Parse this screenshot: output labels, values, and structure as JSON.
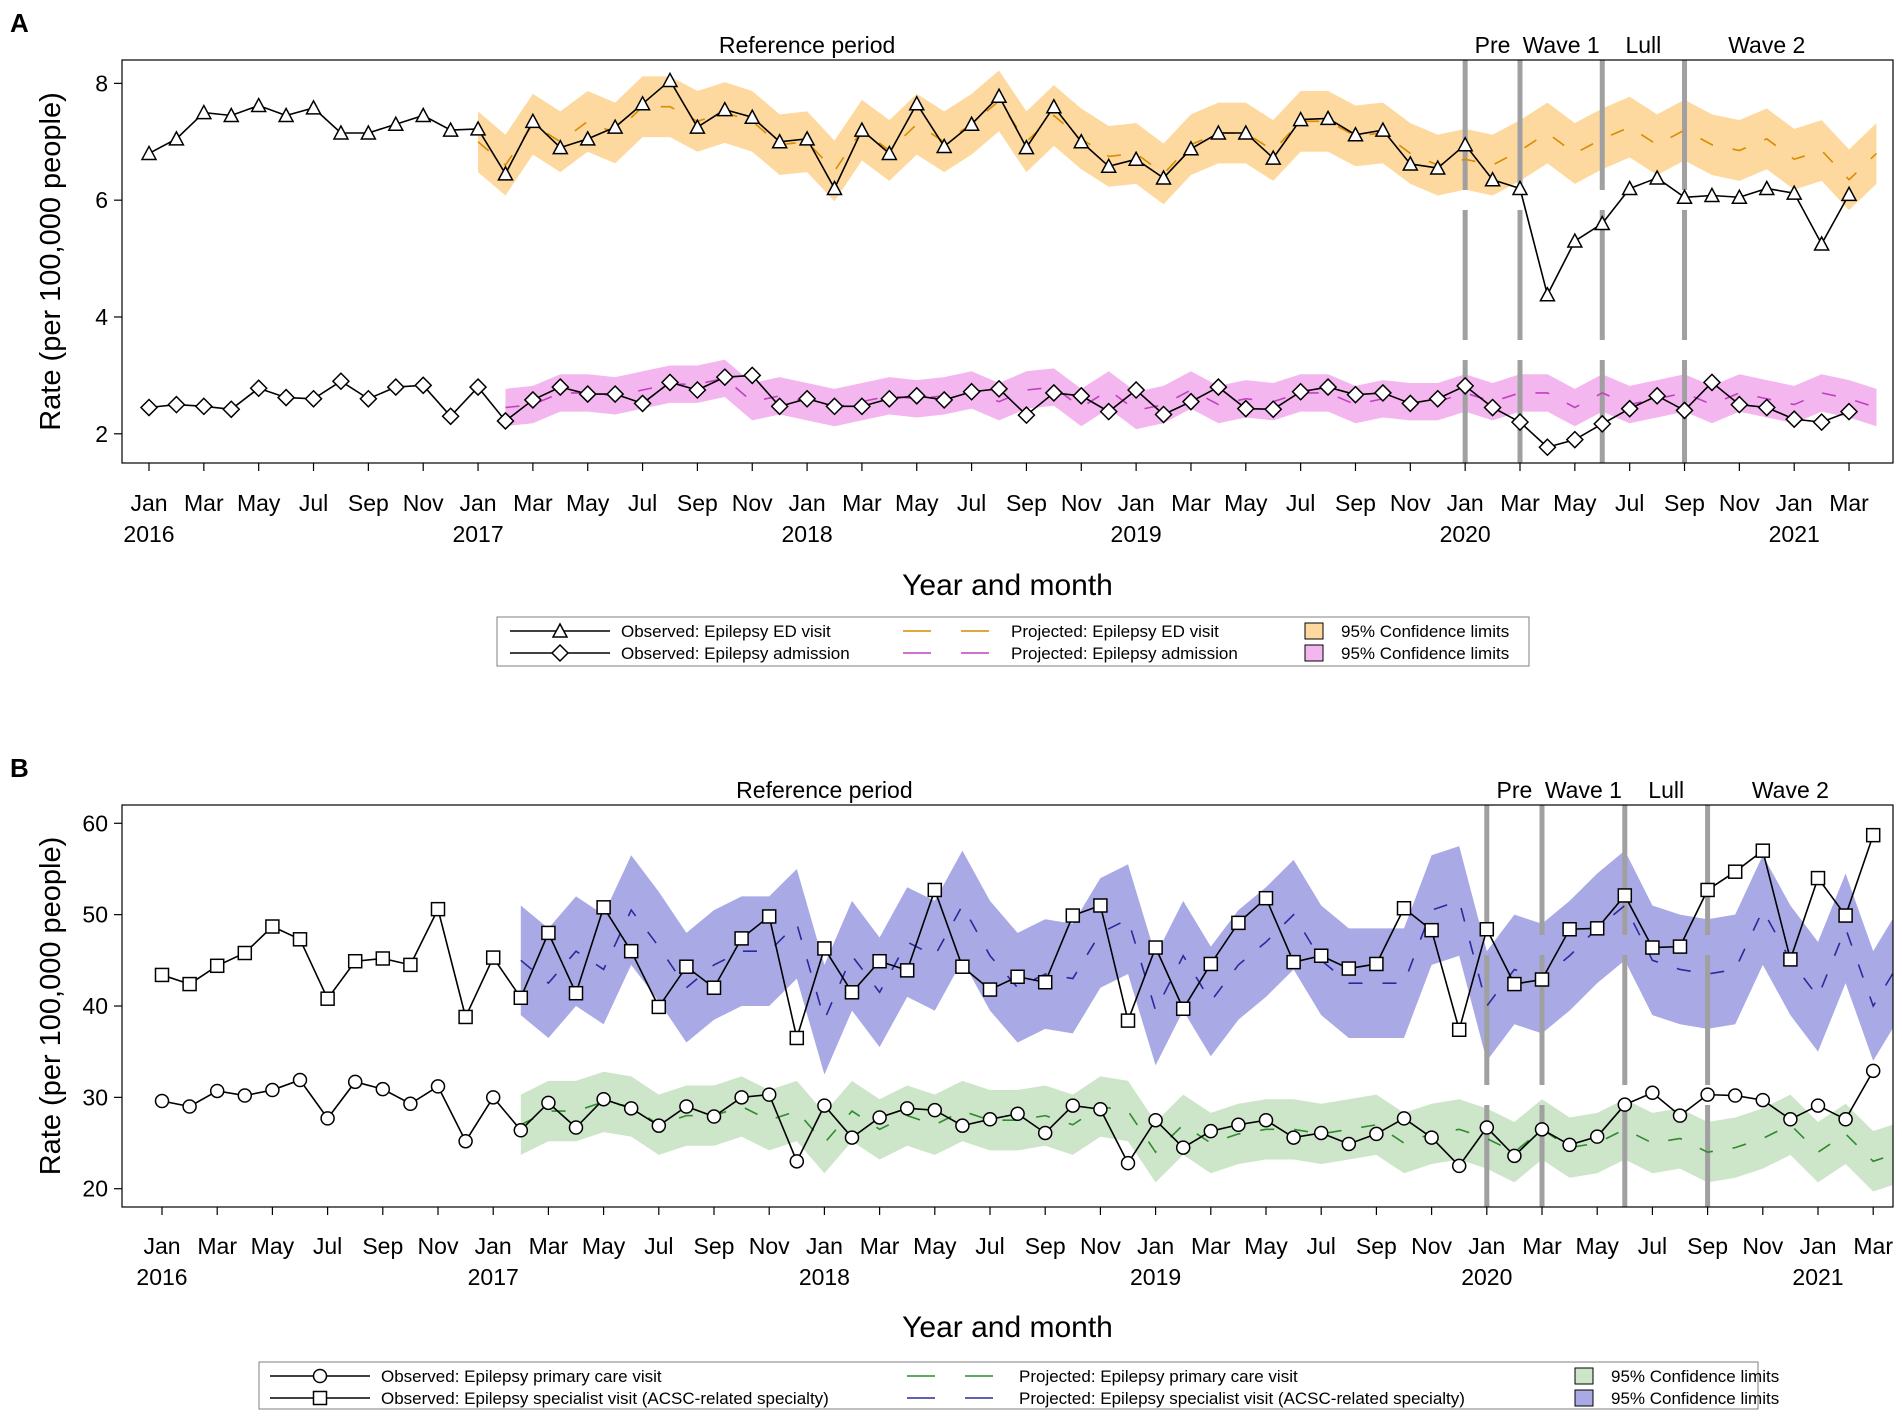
{
  "chart_data": [
    {
      "panel_label": "A",
      "type": "line",
      "title": "",
      "xlabel": "Year and month",
      "ylabel": "Rate (per 100,000 people)",
      "ylim": [
        1.5,
        8.4
      ],
      "yticks": [
        2,
        4,
        6,
        8
      ],
      "x_start": "Jan 2016",
      "x_end": "Mar 2021",
      "month_ticks": [
        "Jan",
        "Mar",
        "May",
        "Jul",
        "Sep",
        "Nov",
        "Jan",
        "Mar",
        "May",
        "Jul",
        "Sep",
        "Nov",
        "Jan",
        "Mar",
        "May",
        "Jul",
        "Sep",
        "Nov",
        "Jan",
        "Mar",
        "May",
        "Jul",
        "Sep",
        "Nov",
        "Jan",
        "Mar",
        "May",
        "Jul",
        "Sep",
        "Nov",
        "Jan",
        "Mar"
      ],
      "year_labels": [
        "2016",
        "2017",
        "2018",
        "2019",
        "2020",
        "2021"
      ],
      "period_labels": [
        "Reference period",
        "Pre",
        "Wave 1",
        "Lull",
        "Wave 2"
      ],
      "period_dividers": [
        "Jan 2020",
        "Mar 2020",
        "Jun 2020",
        "Sep 2020"
      ],
      "observed": [
        {
          "name": "Observed: Epilepsy ED visit",
          "marker": "triangle",
          "values": [
            6.8,
            7.05,
            7.5,
            7.45,
            7.62,
            7.45,
            7.58,
            7.15,
            7.15,
            7.3,
            7.45,
            7.2,
            7.22,
            6.45,
            7.35,
            6.9,
            7.05,
            7.25,
            7.65,
            8.05,
            7.25,
            7.55,
            7.42,
            7.0,
            7.05,
            6.2,
            7.2,
            6.8,
            7.65,
            6.92,
            7.3,
            7.78,
            6.9,
            7.6,
            7.0,
            6.58,
            6.7,
            6.38,
            6.88,
            7.15,
            7.15,
            6.72,
            7.38,
            7.4,
            7.12,
            7.2,
            6.62,
            6.55,
            6.95,
            6.35,
            6.2,
            4.38,
            5.3,
            5.6,
            6.2,
            6.38,
            6.05,
            6.08,
            6.05,
            6.2,
            6.12,
            5.25,
            6.1
          ]
        },
        {
          "name": "Observed: Epilepsy admission",
          "marker": "diamond",
          "values": [
            2.45,
            2.5,
            2.47,
            2.42,
            2.78,
            2.62,
            2.6,
            2.9,
            2.6,
            2.8,
            2.83,
            2.3,
            2.8,
            2.22,
            2.58,
            2.8,
            2.68,
            2.68,
            2.52,
            2.88,
            2.75,
            2.97,
            3.0,
            2.47,
            2.6,
            2.47,
            2.47,
            2.6,
            2.65,
            2.58,
            2.72,
            2.77,
            2.32,
            2.7,
            2.65,
            2.38,
            2.75,
            2.33,
            2.55,
            2.8,
            2.43,
            2.42,
            2.72,
            2.8,
            2.67,
            2.7,
            2.52,
            2.6,
            2.82,
            2.45,
            2.2,
            1.77,
            1.9,
            2.17,
            2.43,
            2.65,
            2.4,
            2.88,
            2.5,
            2.45,
            2.25,
            2.2,
            2.38
          ]
        }
      ],
      "projected": [
        {
          "name": "Projected: Epilepsy ED visit",
          "color": "#d98c00",
          "band_color": "#fdd9a0",
          "start_index": 12,
          "values": [
            7.0,
            6.6,
            7.3,
            7.0,
            7.35,
            7.15,
            7.6,
            7.6,
            7.35,
            7.5,
            7.35,
            6.95,
            7.0,
            6.5,
            7.2,
            6.85,
            7.3,
            7.0,
            7.3,
            7.7,
            7.0,
            7.45,
            7.05,
            6.75,
            6.8,
            6.45,
            6.95,
            7.15,
            7.15,
            6.85,
            7.35,
            7.35,
            7.1,
            7.15,
            6.8,
            6.6,
            6.7,
            6.6,
            6.85,
            7.15,
            6.8,
            7.05,
            7.25,
            6.95,
            7.2,
            6.95,
            6.85,
            7.05,
            6.7,
            6.85,
            6.35,
            6.8
          ],
          "band_half_width": 0.52
        },
        {
          "name": "Projected: Epilepsy admission",
          "color": "#c040c0",
          "band_color": "#f4b6ee",
          "start_index": 13,
          "values": [
            2.45,
            2.5,
            2.7,
            2.7,
            2.65,
            2.75,
            2.85,
            2.85,
            2.95,
            2.55,
            2.65,
            2.55,
            2.45,
            2.55,
            2.65,
            2.6,
            2.65,
            2.75,
            2.55,
            2.75,
            2.8,
            2.45,
            2.75,
            2.4,
            2.5,
            2.75,
            2.5,
            2.6,
            2.55,
            2.7,
            2.7,
            2.5,
            2.6,
            2.55,
            2.55,
            2.7,
            2.55,
            2.7,
            2.7,
            2.45,
            2.7,
            2.5,
            2.6,
            2.7,
            2.5,
            2.7,
            2.6,
            2.5,
            2.7,
            2.6,
            2.45
          ],
          "band_half_width": 0.32
        }
      ],
      "legend": [
        {
          "label": "Observed: Epilepsy ED visit",
          "kind": "observed",
          "marker": "triangle"
        },
        {
          "label": "Projected: Epilepsy ED visit",
          "kind": "projected",
          "color": "#d98c00"
        },
        {
          "label": "95% Confidence limits",
          "kind": "band",
          "color": "#fdd9a0"
        },
        {
          "label": "Observed: Epilepsy admission",
          "kind": "observed",
          "marker": "diamond"
        },
        {
          "label": "Projected: Epilepsy admission",
          "kind": "projected",
          "color": "#c040c0"
        },
        {
          "label": "95% Confidence limits",
          "kind": "band",
          "color": "#f4b6ee"
        }
      ]
    },
    {
      "panel_label": "B",
      "type": "line",
      "title": "",
      "xlabel": "Year and month",
      "ylabel": "Rate (per 100,000 people)",
      "ylim": [
        18,
        62
      ],
      "yticks": [
        20,
        30,
        40,
        50,
        60
      ],
      "x_start": "Jan 2016",
      "x_end": "Mar 2021",
      "month_ticks": [
        "Jan",
        "Mar",
        "May",
        "Jul",
        "Sep",
        "Nov",
        "Jan",
        "Mar",
        "May",
        "Jul",
        "Sep",
        "Nov",
        "Jan",
        "Mar",
        "May",
        "Jul",
        "Sep",
        "Nov",
        "Jan",
        "Mar",
        "May",
        "Jul",
        "Sep",
        "Nov",
        "Jan",
        "Mar",
        "May",
        "Jul",
        "Sep",
        "Nov",
        "Jan",
        "Mar"
      ],
      "year_labels": [
        "2016",
        "2017",
        "2018",
        "2019",
        "2020",
        "2021"
      ],
      "period_labels": [
        "Reference period",
        "Pre",
        "Wave 1",
        "Lull",
        "Wave 2"
      ],
      "period_dividers": [
        "Jan 2020",
        "Mar 2020",
        "Jun 2020",
        "Sep 2020"
      ],
      "observed": [
        {
          "name": "Observed: Epilepsy primary care visit",
          "marker": "circle",
          "values": [
            29.6,
            29.0,
            30.7,
            30.2,
            30.8,
            31.9,
            27.7,
            31.7,
            30.9,
            29.3,
            31.2,
            25.2,
            30.0,
            26.4,
            29.4,
            26.7,
            29.8,
            28.8,
            26.9,
            29.0,
            27.9,
            30.0,
            30.3,
            23.0,
            29.1,
            25.6,
            27.8,
            28.8,
            28.6,
            26.9,
            27.6,
            28.2,
            26.1,
            29.1,
            28.7,
            22.8,
            27.5,
            24.5,
            26.3,
            27.0,
            27.5,
            25.6,
            26.1,
            24.9,
            26.0,
            27.7,
            25.6,
            22.5,
            26.7,
            23.6,
            26.5,
            24.8,
            25.7,
            29.2,
            30.5,
            28.0,
            30.3,
            30.2,
            29.7,
            27.6,
            29.1,
            27.6,
            32.9
          ]
        },
        {
          "name": "Observed: Epilepsy specialist visit (ACSC-related specialty)",
          "marker": "square",
          "values": [
            43.4,
            42.4,
            44.4,
            45.8,
            48.7,
            47.3,
            40.8,
            44.9,
            45.2,
            44.5,
            50.6,
            38.8,
            45.3,
            40.9,
            48.0,
            41.4,
            50.8,
            46.0,
            39.9,
            44.3,
            42.0,
            47.4,
            49.8,
            36.5,
            46.3,
            41.5,
            44.9,
            43.9,
            52.7,
            44.3,
            41.8,
            43.2,
            42.6,
            49.9,
            51.0,
            38.4,
            46.4,
            39.7,
            44.6,
            49.1,
            51.8,
            44.8,
            45.5,
            44.1,
            44.6,
            50.7,
            48.3,
            37.4,
            48.4,
            42.4,
            42.9,
            48.4,
            48.5,
            52.1,
            46.4,
            46.5,
            52.7,
            54.7,
            57.0,
            45.1,
            54.0,
            49.9,
            58.7
          ]
        }
      ],
      "projected": [
        {
          "name": "Projected: Epilepsy primary care visit",
          "color": "#2e8b2e",
          "band_color": "#cde5c8",
          "start_index": 13,
          "values": [
            27.0,
            28.5,
            28.5,
            29.5,
            29.0,
            27.0,
            28.0,
            28.0,
            29.0,
            27.5,
            28.5,
            25.0,
            28.5,
            26.5,
            28.0,
            27.0,
            28.5,
            27.5,
            27.5,
            28.0,
            27.0,
            29.0,
            28.5,
            24.0,
            27.0,
            25.0,
            26.0,
            26.5,
            26.5,
            26.0,
            26.5,
            27.0,
            25.0,
            26.0,
            26.5,
            25.5,
            24.0,
            26.5,
            24.5,
            25.0,
            26.5,
            25.0,
            25.5,
            24.0,
            24.5,
            25.5,
            27.0,
            24.0,
            26.0,
            23.0,
            24.0
          ],
          "band_half_width": 3.3
        },
        {
          "name": "Projected: Epilepsy specialist visit (ACSC-related specialty)",
          "color": "#2a2a9e",
          "band_color": "#a9a9e6",
          "start_index": 13,
          "values": [
            45.0,
            42.5,
            46.0,
            44.0,
            50.5,
            46.5,
            42.0,
            44.5,
            46.0,
            46.0,
            49.0,
            38.5,
            45.5,
            41.5,
            47.0,
            45.5,
            51.0,
            45.5,
            42.0,
            43.5,
            43.0,
            48.0,
            49.5,
            39.5,
            45.5,
            40.5,
            44.5,
            47.0,
            50.0,
            45.0,
            42.5,
            42.5,
            42.5,
            50.5,
            51.5,
            40.0,
            44.0,
            43.0,
            45.5,
            48.5,
            51.0,
            45.0,
            44.0,
            43.5,
            44.0,
            50.5,
            45.0,
            41.0,
            48.5,
            40.0,
            45.0
          ],
          "band_half_width": 6.0
        }
      ],
      "legend": [
        {
          "label": "Observed: Epilepsy primary care visit",
          "kind": "observed",
          "marker": "circle"
        },
        {
          "label": "Projected: Epilepsy primary care visit",
          "kind": "projected",
          "color": "#2e8b2e"
        },
        {
          "label": "95% Confidence limits",
          "kind": "band",
          "color": "#cde5c8"
        },
        {
          "label": "Observed: Epilepsy specialist visit (ACSC-related specialty)",
          "kind": "observed",
          "marker": "square"
        },
        {
          "label": "Projected: Epilepsy specialist visit (ACSC-related specialty)",
          "kind": "projected",
          "color": "#2a2a9e"
        },
        {
          "label": "95% Confidence limits",
          "kind": "band",
          "color": "#a9a9e6"
        }
      ]
    }
  ]
}
